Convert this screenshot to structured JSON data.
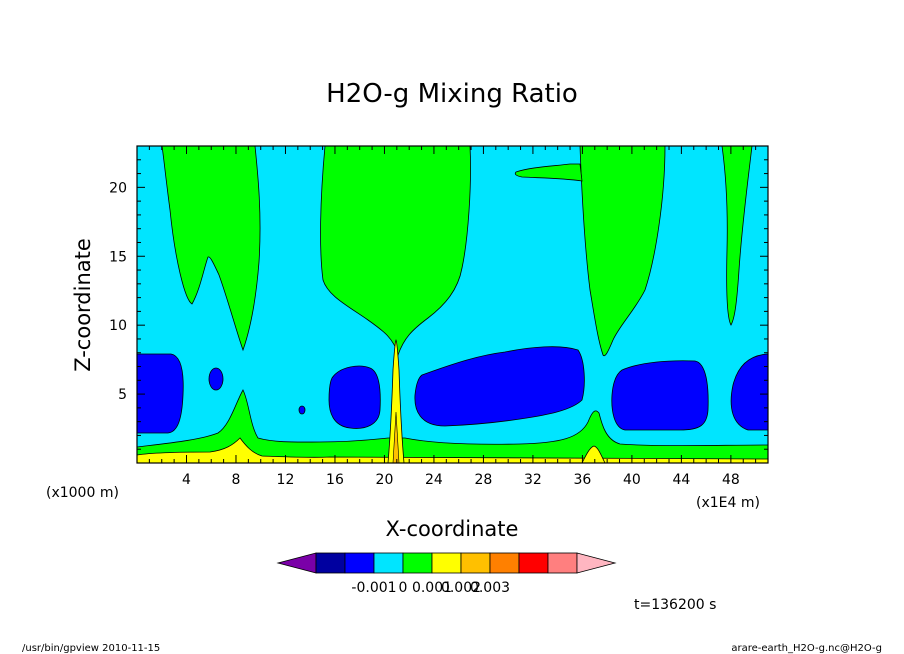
{
  "chart_data": {
    "type": "contour",
    "title": "H2O-g Mixing Ratio",
    "xlabel": "X-coordinate",
    "ylabel": "Z-coordinate",
    "x_unit_label": "(x1000 m)",
    "x_scale_label": "(x1E4 m)",
    "xlim": [
      0,
      51
    ],
    "ylim": [
      0,
      23
    ],
    "x_ticks": [
      4,
      8,
      12,
      16,
      20,
      24,
      28,
      32,
      36,
      40,
      44,
      48
    ],
    "y_ticks": [
      5,
      10,
      15,
      20
    ],
    "time_label": "t=136200 s",
    "colorbar": {
      "colors": [
        "#7a00a8",
        "#0000a0",
        "#0000ff",
        "#00e5ff",
        "#00ff00",
        "#ffff00",
        "#ffc000",
        "#ff8000",
        "#ff0000",
        "#ff7f7f",
        "#ffb6c1"
      ],
      "labels": [
        "-0.001",
        "0",
        "0.001",
        "0.002",
        "0.003"
      ]
    },
    "regions": [
      {
        "level": "cyan",
        "color": "#00e5ff",
        "note": "background"
      },
      {
        "level": "green",
        "color": "#00ff00"
      },
      {
        "level": "blue",
        "color": "#0000ff"
      },
      {
        "level": "yellow",
        "color": "#ffff00"
      },
      {
        "level": "orange",
        "color": "#ffc000"
      }
    ]
  },
  "footer": {
    "left": "/usr/bin/gpview  2010-11-15",
    "right": "arare-earth_H2O-g.nc@H2O-g"
  }
}
